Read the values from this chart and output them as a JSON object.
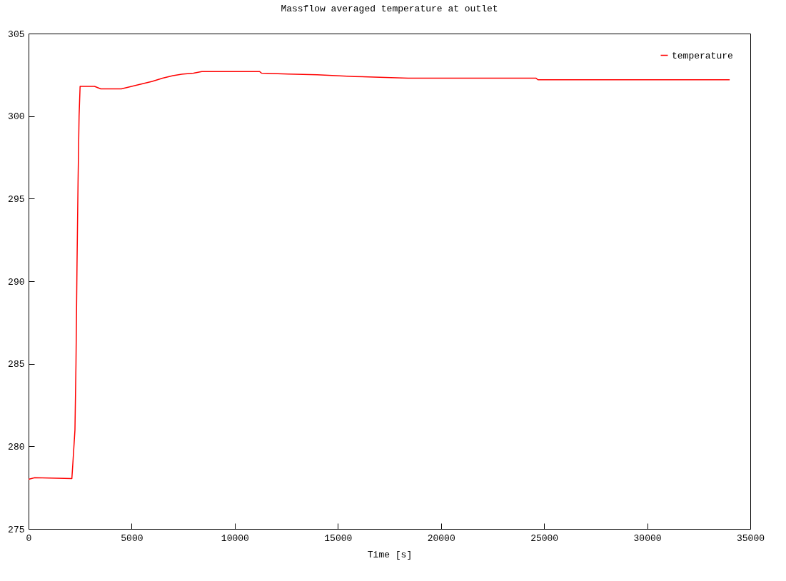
{
  "chart_data": {
    "type": "line",
    "title": "Massflow averaged temperature at outlet",
    "xlabel": "Time [s]",
    "x": [
      0,
      300,
      2100,
      2150,
      2250,
      2300,
      2350,
      2400,
      2450,
      2500,
      3200,
      3500,
      4500,
      5000,
      5500,
      6000,
      6500,
      7000,
      7500,
      8000,
      8400,
      11200,
      11300,
      12600,
      14000,
      15800,
      18400,
      24600,
      24700,
      34000
    ],
    "series": [
      {
        "name": "temperature",
        "color": "#ff0000",
        "values": [
          278.0,
          278.1,
          278.05,
          279,
          281,
          285,
          291,
          296,
          300,
          301.8,
          301.8,
          301.65,
          301.65,
          301.8,
          301.95,
          302.1,
          302.3,
          302.45,
          302.55,
          302.6,
          302.7,
          302.7,
          302.6,
          302.55,
          302.5,
          302.4,
          302.3,
          302.3,
          302.2,
          302.2
        ]
      }
    ],
    "xlim": [
      0,
      35000
    ],
    "xticks": [
      0,
      5000,
      10000,
      15000,
      20000,
      25000,
      30000,
      35000
    ],
    "ylim": [
      275,
      305
    ],
    "yticks": [
      275,
      280,
      285,
      290,
      295,
      300,
      305
    ],
    "grid": false,
    "legend": "top right",
    "marker": "none",
    "line_style": "solid"
  }
}
